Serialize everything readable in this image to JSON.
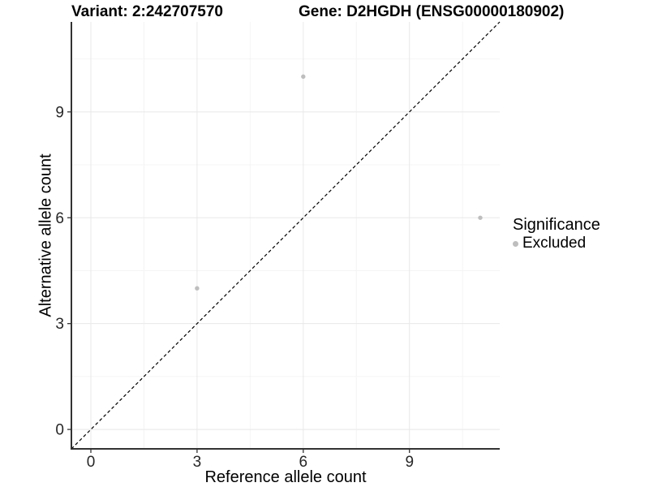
{
  "titles": {
    "variant": "Variant: 2:242707570",
    "gene": "Gene: D2HGDH (ENSG00000180902)"
  },
  "chart_data": {
    "type": "scatter",
    "title": "Variant: 2:242707570   Gene: D2HGDH (ENSG00000180902)",
    "xlabel": "Reference allele count",
    "ylabel": "Alternative allele count",
    "xlim": [
      -0.55,
      11.55
    ],
    "ylim": [
      -0.55,
      11.55
    ],
    "x_ticks": [
      0,
      3,
      6,
      9
    ],
    "y_ticks": [
      0,
      3,
      6,
      9
    ],
    "x_minor_ticks": [
      1.5,
      4.5,
      7.5,
      10.5
    ],
    "y_minor_ticks": [
      1.5,
      4.5,
      7.5,
      10.5
    ],
    "grid": "on",
    "legend_position": "right",
    "series": [
      {
        "name": "Excluded",
        "color": "#bebebe",
        "points": [
          {
            "x": 3,
            "y": 4
          },
          {
            "x": 6,
            "y": 10
          },
          {
            "x": 11,
            "y": 6
          }
        ]
      }
    ],
    "reference_line": {
      "type": "identity",
      "slope": 1,
      "intercept": 0,
      "style": "dashed",
      "color": "#000000"
    }
  },
  "legend": {
    "title": "Significance",
    "items": [
      {
        "label": "Excluded",
        "color": "#bebebe"
      }
    ]
  },
  "colors": {
    "point": "#bebebe",
    "axis": "#333333",
    "tick_label": "#262626",
    "grid_major": "#e8e8e8",
    "grid_minor": "#f4f4f4",
    "diagonal": "#000000",
    "background": "#ffffff"
  }
}
